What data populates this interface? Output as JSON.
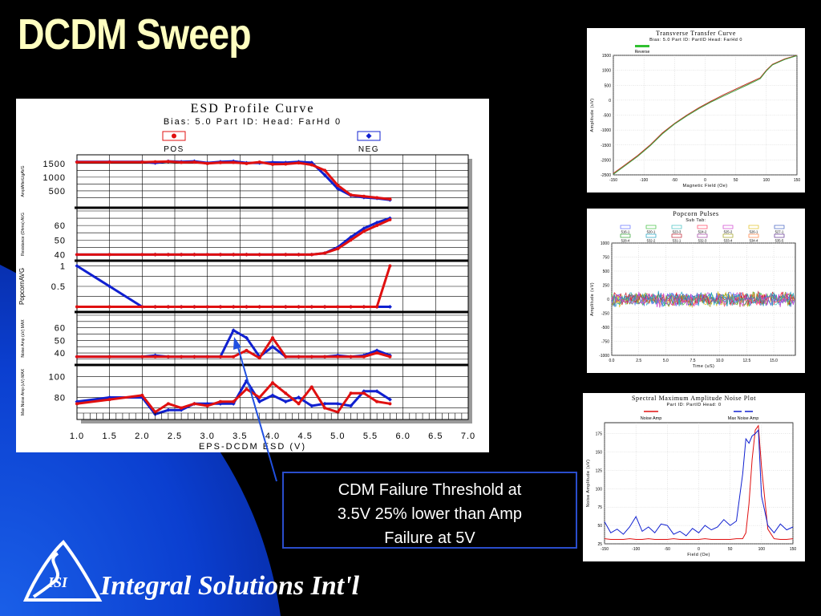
{
  "slide": {
    "title": "DCDM Sweep",
    "callout": [
      "CDM Failure Threshold at",
      "3.5V 25% lower than Amp",
      "Failure at 5V"
    ],
    "company": "Integral Solutions Int'l",
    "logo_text": "ISI"
  },
  "colors": {
    "pos": "#e01010",
    "neg": "#1020d0",
    "title": "#ffffc0",
    "callout_border": "#2a4dcc"
  },
  "chart_data": [
    {
      "id": "esd",
      "type": "line",
      "title": "ESD Profile Curve",
      "subtitle": "Bias: 5.0 Part ID: Head: FarHd 0",
      "xlabel": "EPS-DCDM ESD (V)",
      "xlim": [
        1.0,
        7.0
      ],
      "xticks": [
        "1.0",
        "1.5",
        "2.0",
        "2.5",
        "3.0",
        "3.5",
        "4.0",
        "4.5",
        "5.0",
        "5.5",
        "6.0",
        "6.5",
        "7.0"
      ],
      "legend": [
        {
          "name": "POS",
          "symbol": "circle"
        },
        {
          "name": "NEG",
          "symbol": "diamond"
        }
      ],
      "x": [
        1.0,
        1.5,
        2.0,
        2.2,
        2.4,
        2.6,
        2.8,
        3.0,
        3.2,
        3.4,
        3.6,
        3.8,
        4.0,
        4.2,
        4.4,
        4.6,
        4.8,
        5.0,
        5.2,
        5.4,
        5.6,
        5.8
      ],
      "panels": [
        {
          "ylabel": "AmplAfterLtgAVG",
          "ylim": [
            0,
            1700
          ],
          "yticks": [
            500,
            1000,
            1500
          ],
          "pos": [
            1550,
            1550,
            1550,
            1560,
            1570,
            1540,
            1550,
            1500,
            1530,
            1540,
            1500,
            1550,
            1470,
            1480,
            1520,
            1450,
            1250,
            700,
            350,
            300,
            250,
            200
          ],
          "neg": [
            1560,
            1560,
            1560,
            1520,
            1580,
            1560,
            1580,
            1520,
            1560,
            1580,
            1520,
            1520,
            1540,
            1530,
            1560,
            1530,
            1080,
            580,
            330,
            260,
            230,
            170
          ]
        },
        {
          "ylabel": "Resistance (Ohms) AVG",
          "ylim": [
            38,
            70
          ],
          "yticks": [
            40,
            50,
            60
          ],
          "pos": [
            40,
            40,
            40,
            40,
            40,
            40,
            40,
            40,
            40,
            40,
            40,
            40,
            40,
            40,
            40,
            40,
            41,
            44,
            50,
            56,
            60,
            64
          ],
          "neg": [
            40,
            40,
            40,
            40,
            40,
            40,
            40,
            40,
            40,
            40,
            40,
            40,
            40,
            40,
            40,
            40,
            41,
            45,
            52,
            58,
            62,
            65
          ]
        },
        {
          "ylabel": "PopcornAVG",
          "ylim": [
            -0.05,
            1.05
          ],
          "yticks": [
            0.5,
            1.0
          ],
          "pos": [
            0,
            0,
            0,
            0,
            0,
            0,
            0,
            0,
            0,
            0,
            0,
            0,
            0,
            0,
            0,
            0,
            0,
            0,
            0,
            0,
            0,
            1.0
          ],
          "neg": [
            1.0,
            0.5,
            0,
            0,
            0,
            0,
            0,
            0,
            0,
            0,
            0,
            0,
            0,
            0,
            0,
            0,
            0,
            0,
            0,
            0,
            0,
            0
          ]
        },
        {
          "ylabel": "Noise Amp (uV) MAX",
          "ylim": [
            33,
            70
          ],
          "yticks": [
            40,
            50,
            60
          ],
          "pos": [
            37,
            37,
            37,
            37,
            37,
            37,
            37,
            37,
            37,
            37,
            42,
            36,
            52,
            37,
            37,
            37,
            37,
            37,
            37,
            37,
            40,
            37
          ],
          "neg": [
            37,
            37,
            37,
            38,
            37,
            37,
            37,
            37,
            37,
            58,
            52,
            37,
            45,
            37,
            37,
            37,
            37,
            38,
            37,
            38,
            42,
            38
          ]
        },
        {
          "ylabel": "Max Noise Amp (uV) MAX",
          "ylim": [
            62,
            108
          ],
          "yticks": [
            80,
            100
          ],
          "pos": [
            74,
            78,
            82,
            66,
            74,
            70,
            74,
            72,
            76,
            76,
            88,
            80,
            94,
            84,
            74,
            90,
            70,
            66,
            84,
            84,
            76,
            74
          ],
          "neg": [
            76,
            80,
            80,
            64,
            68,
            68,
            74,
            74,
            74,
            74,
            96,
            76,
            82,
            76,
            80,
            72,
            74,
            74,
            72,
            86,
            86,
            78
          ]
        }
      ]
    },
    {
      "id": "transfer",
      "type": "line",
      "title": "Transverse Transfer Curve",
      "subtitle": "Bias: 5.0 Part ID: PartID Head: FarHd 0",
      "legend": [
        "Reverse"
      ],
      "xlabel": "Magnetic Field (Oe)",
      "ylabel": "Amplitude (uV)",
      "xlim": [
        -150,
        150
      ],
      "ylim": [
        -2500,
        1500
      ],
      "xticks": [
        -150,
        -100,
        -50,
        0,
        50,
        100,
        150
      ],
      "yticks": [
        1500,
        1000,
        500,
        0,
        -500,
        -1000,
        -1500,
        -2000,
        -2500
      ],
      "x": [
        -150,
        -130,
        -110,
        -90,
        -70,
        -50,
        -30,
        -10,
        10,
        30,
        50,
        70,
        90,
        100,
        110,
        130,
        150
      ],
      "series": [
        {
          "color": "#c03020",
          "values": [
            -2450,
            -2150,
            -1850,
            -1500,
            -1100,
            -780,
            -500,
            -250,
            -30,
            180,
            370,
            560,
            750,
            1000,
            1200,
            1380,
            1500
          ]
        },
        {
          "color": "#40a040",
          "values": [
            -2480,
            -2180,
            -1880,
            -1530,
            -1130,
            -800,
            -530,
            -280,
            -60,
            140,
            330,
            520,
            720,
            980,
            1180,
            1360,
            1490
          ]
        }
      ]
    },
    {
      "id": "popcorn",
      "type": "line",
      "title": "Popcorn Pulses",
      "subtitle": "Sub Tab:",
      "legend": [
        "516-1",
        "520-1",
        "523-3",
        "524-2",
        "525-2",
        "526-1",
        "527-1",
        "528-4",
        "532-2",
        "531-1",
        "532-3",
        "533-4",
        "534-4",
        "535-5"
      ],
      "xlabel": "Time (uS)",
      "ylabel": "Amplitude (uV)",
      "xlim": [
        0,
        17
      ],
      "ylim": [
        -1000,
        1000
      ],
      "xticks": [
        0.0,
        2.5,
        5.0,
        7.5,
        10.0,
        12.5,
        15.0
      ],
      "yticks": [
        1000,
        750,
        500,
        250,
        0,
        -250,
        -500,
        -750,
        -1000
      ]
    },
    {
      "id": "noise",
      "type": "line",
      "title": "Spectral Maximum Amplitude Noise Plot",
      "subtitle": "Part ID: PartID Head: 0",
      "legend": [
        "Noise Amp",
        "Max Noise Amp"
      ],
      "xlabel": "Field (Oe)",
      "ylabel": "Noise Amplitude (uV)",
      "xlim": [
        -150,
        150
      ],
      "ylim": [
        25,
        190
      ],
      "xticks": [
        -150,
        -100,
        -50,
        0,
        50,
        100,
        150
      ],
      "yticks": [
        175,
        150,
        125,
        100,
        75,
        50,
        25
      ],
      "x": [
        -150,
        -140,
        -130,
        -120,
        -110,
        -100,
        -90,
        -80,
        -70,
        -60,
        -50,
        -40,
        -30,
        -20,
        -10,
        0,
        10,
        20,
        30,
        40,
        50,
        60,
        70,
        75,
        80,
        85,
        90,
        95,
        100,
        110,
        120,
        130,
        140,
        150
      ],
      "series": [
        {
          "name": "Noise Amp",
          "values": [
            32,
            31,
            31,
            31,
            32,
            31,
            31,
            32,
            31,
            31,
            31,
            32,
            31,
            31,
            31,
            31,
            32,
            31,
            31,
            31,
            31,
            32,
            32,
            40,
            80,
            140,
            180,
            186,
            130,
            45,
            32,
            31,
            31,
            32
          ]
        },
        {
          "name": "Max Noise Amp",
          "values": [
            55,
            40,
            45,
            38,
            48,
            62,
            42,
            48,
            40,
            52,
            50,
            38,
            42,
            36,
            46,
            40,
            50,
            44,
            48,
            58,
            50,
            56,
            120,
            168,
            162,
            172,
            175,
            180,
            90,
            50,
            40,
            52,
            44,
            48
          ]
        }
      ]
    }
  ]
}
